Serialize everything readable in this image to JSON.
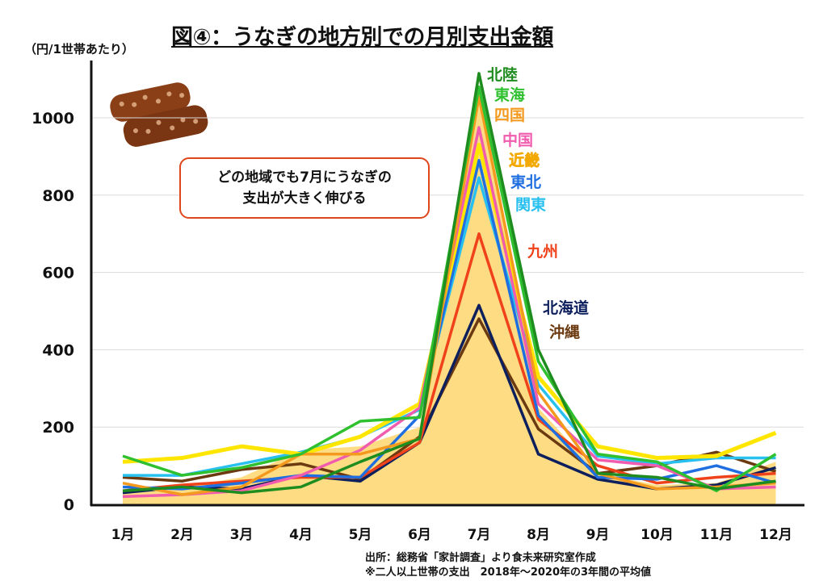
{
  "title": "図④：うなぎの地方別での月別支出金額",
  "unit_label": "（円/1世帯あたり）",
  "callout": [
    "どの地域でも7月にうなぎの",
    "支出が大きく伸びる"
  ],
  "notes": [
    "出所：総務省「家計調査」より食未来研究室作成",
    "※二人以上世帯の支出　2018年～2020年の3年間の平均値"
  ],
  "chart_data": {
    "type": "line",
    "title": "図④：うなぎの地方別での月別支出金額",
    "ylabel": "（円/1世帯あたり）",
    "xlabel": "",
    "categories": [
      "1月",
      "2月",
      "3月",
      "4月",
      "5月",
      "6月",
      "7月",
      "8月",
      "9月",
      "10月",
      "11月",
      "12月"
    ],
    "yticks": [
      0,
      200,
      400,
      600,
      800,
      1000
    ],
    "ylim": [
      0,
      1150
    ],
    "grid": true,
    "legend": "inline labels right of July peak",
    "area_fill": {
      "color": "#fddc84",
      "values": [
        30,
        45,
        70,
        140,
        150,
        200,
        1060,
        250,
        80,
        50,
        55,
        110
      ]
    },
    "series": [
      {
        "name": "北陸",
        "color": "#1e8c1e",
        "values": [
          35,
          45,
          30,
          45,
          110,
          170,
          1115,
          400,
          80,
          70,
          40,
          60
        ]
      },
      {
        "name": "東海",
        "color": "#2fc02f",
        "values": [
          125,
          75,
          95,
          130,
          215,
          225,
          1080,
          370,
          130,
          110,
          35,
          130
        ]
      },
      {
        "name": "四国",
        "color": "#f39a1e",
        "values": [
          55,
          25,
          45,
          130,
          130,
          170,
          1055,
          290,
          80,
          40,
          45,
          55
        ]
      },
      {
        "name": "中国",
        "color": "#f05cae",
        "values": [
          20,
          25,
          35,
          75,
          140,
          250,
          975,
          260,
          115,
          100,
          40,
          45
        ]
      },
      {
        "name": "近畿",
        "color": "#ffe600",
        "values": [
          110,
          120,
          150,
          130,
          175,
          260,
          930,
          330,
          150,
          120,
          125,
          185
        ]
      },
      {
        "name": "東北",
        "color": "#1f6fe0",
        "values": [
          45,
          40,
          55,
          75,
          70,
          230,
          890,
          230,
          70,
          65,
          100,
          55
        ]
      },
      {
        "name": "関東",
        "color": "#27c0ef",
        "values": [
          75,
          75,
          105,
          135,
          175,
          245,
          845,
          310,
          125,
          105,
          120,
          120
        ]
      },
      {
        "name": "九州",
        "color": "#f0421a",
        "values": [
          35,
          50,
          60,
          70,
          70,
          160,
          700,
          220,
          100,
          55,
          70,
          80
        ]
      },
      {
        "name": "北海道",
        "color": "#0d1f5c",
        "values": [
          30,
          45,
          40,
          75,
          60,
          160,
          515,
          130,
          65,
          40,
          50,
          95
        ]
      },
      {
        "name": "沖縄",
        "color": "#6b3a10",
        "values": [
          70,
          60,
          90,
          105,
          65,
          175,
          480,
          195,
          80,
          100,
          135,
          85
        ]
      }
    ]
  }
}
